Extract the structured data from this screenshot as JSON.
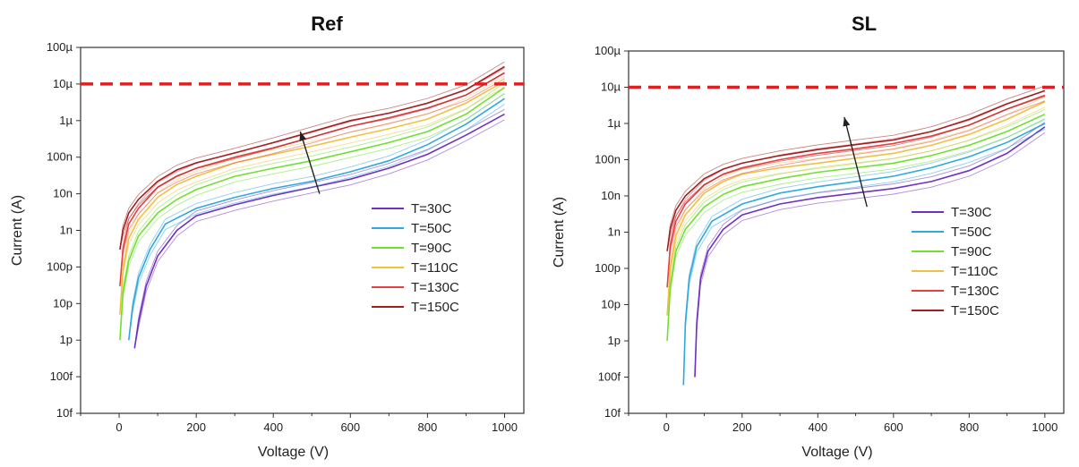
{
  "chart_data": [
    {
      "type": "line",
      "title": "Ref",
      "xlabel": "Voltage (V)",
      "ylabel": "Current (A)",
      "x_scale": "linear",
      "y_scale": "log",
      "xlim": [
        -100,
        1050
      ],
      "ylim": [
        1e-14,
        0.0001
      ],
      "x_ticks": [
        0,
        200,
        400,
        600,
        800,
        1000
      ],
      "y_ticks": [
        {
          "value": 0.0001,
          "label": "100µ"
        },
        {
          "value": 1e-05,
          "label": "10µ"
        },
        {
          "value": 1e-06,
          "label": "1µ"
        },
        {
          "value": 1e-07,
          "label": "100n"
        },
        {
          "value": 1e-08,
          "label": "10n"
        },
        {
          "value": 1e-09,
          "label": "1n"
        },
        {
          "value": 1e-10,
          "label": "100p"
        },
        {
          "value": 1e-11,
          "label": "10p"
        },
        {
          "value": 1e-12,
          "label": "1p"
        },
        {
          "value": 1e-13,
          "label": "100f"
        },
        {
          "value": 1e-14,
          "label": "10f"
        }
      ],
      "reference_line": {
        "y": 1e-05,
        "color": "#e02020",
        "style": "dashed"
      },
      "arrow": {
        "from": [
          520,
          1e-08
        ],
        "to": [
          470,
          5e-07
        ]
      },
      "legend_position": "bottom-right",
      "series": [
        {
          "name": "T=30C",
          "color": "#7030c0",
          "x": [
            40,
            50,
            70,
            100,
            150,
            200,
            300,
            400,
            500,
            600,
            700,
            800,
            900,
            1000
          ],
          "y": [
            6e-13,
            3e-12,
            3e-11,
            2e-10,
            1e-09,
            2.5e-09,
            5e-09,
            9e-09,
            1.5e-08,
            2.5e-08,
            5e-08,
            1.2e-07,
            4e-07,
            1.5e-06
          ]
        },
        {
          "name": "T=50C",
          "color": "#30a8e0",
          "x": [
            25,
            35,
            50,
            80,
            120,
            200,
            300,
            400,
            500,
            600,
            700,
            800,
            900,
            1000
          ],
          "y": [
            1e-12,
            8e-12,
            5e-11,
            3e-10,
            1.5e-09,
            4e-09,
            8e-09,
            1.4e-08,
            2.2e-08,
            4e-08,
            8e-08,
            2.2e-07,
            8e-07,
            4e-06
          ]
        },
        {
          "name": "T=90C",
          "color": "#70e030",
          "x": [
            2,
            10,
            25,
            50,
            100,
            150,
            200,
            300,
            400,
            500,
            600,
            700,
            800,
            900,
            1000
          ],
          "y": [
            1e-12,
            2e-11,
            1.5e-10,
            7e-10,
            3e-09,
            7e-09,
            1.3e-08,
            3e-08,
            5e-08,
            8e-08,
            1.4e-07,
            2.5e-07,
            5e-07,
            1.5e-06,
            8e-06
          ]
        },
        {
          "name": "T=110C",
          "color": "#f0c040",
          "x": [
            2,
            10,
            25,
            50,
            100,
            150,
            200,
            300,
            400,
            500,
            600,
            700,
            800,
            900,
            1000
          ],
          "y": [
            5e-12,
            8e-11,
            6e-10,
            2e-09,
            8e-09,
            1.8e-08,
            3e-08,
            7e-08,
            1.2e-07,
            2e-07,
            3.5e-07,
            6e-07,
            1.1e-06,
            3e-06,
            1.2e-05
          ]
        },
        {
          "name": "T=130C",
          "color": "#e84040",
          "x": [
            2,
            10,
            25,
            50,
            100,
            150,
            200,
            300,
            400,
            500,
            600,
            700,
            800,
            900,
            1000
          ],
          "y": [
            3e-11,
            3e-10,
            1.5e-09,
            4e-09,
            1.5e-08,
            3e-08,
            5e-08,
            1e-07,
            1.8e-07,
            3.5e-07,
            7e-07,
            1.2e-06,
            2.2e-06,
            5e-06,
            2e-05
          ]
        },
        {
          "name": "T=150C",
          "color": "#a02020",
          "x": [
            2,
            10,
            25,
            50,
            100,
            150,
            200,
            300,
            400,
            500,
            600,
            700,
            800,
            900,
            1000
          ],
          "y": [
            3e-10,
            1e-09,
            3e-09,
            7e-09,
            2.2e-08,
            4.5e-08,
            7e-08,
            1.3e-07,
            2.5e-07,
            5e-07,
            1e-06,
            1.6e-06,
            3e-06,
            7e-06,
            3e-05
          ]
        }
      ]
    },
    {
      "type": "line",
      "title": "SL",
      "xlabel": "Voltage (V)",
      "ylabel": "Current (A)",
      "x_scale": "linear",
      "y_scale": "log",
      "xlim": [
        -100,
        1050
      ],
      "ylim": [
        1e-14,
        0.0001
      ],
      "x_ticks": [
        0,
        200,
        400,
        600,
        800,
        1000
      ],
      "y_ticks": [
        {
          "value": 0.0001,
          "label": "100µ"
        },
        {
          "value": 1e-05,
          "label": "10µ"
        },
        {
          "value": 1e-06,
          "label": "1µ"
        },
        {
          "value": 1e-07,
          "label": "100n"
        },
        {
          "value": 1e-08,
          "label": "10n"
        },
        {
          "value": 1e-09,
          "label": "1n"
        },
        {
          "value": 1e-10,
          "label": "100p"
        },
        {
          "value": 1e-11,
          "label": "10p"
        },
        {
          "value": 1e-12,
          "label": "1p"
        },
        {
          "value": 1e-13,
          "label": "100f"
        },
        {
          "value": 1e-14,
          "label": "10f"
        }
      ],
      "reference_line": {
        "y": 1e-05,
        "color": "#e02020",
        "style": "dashed"
      },
      "arrow": {
        "from": [
          530,
          5e-09
        ],
        "to": [
          470,
          1.5e-06
        ]
      },
      "legend_position": "bottom-right",
      "series": [
        {
          "name": "T=30C",
          "color": "#7030c0",
          "x": [
            75,
            80,
            90,
            110,
            150,
            200,
            300,
            400,
            500,
            600,
            700,
            800,
            900,
            1000
          ],
          "y": [
            1e-13,
            3e-12,
            5e-11,
            3e-10,
            1.2e-09,
            3e-09,
            6e-09,
            9e-09,
            1.2e-08,
            1.6e-08,
            2.5e-08,
            5e-08,
            1.5e-07,
            8e-07
          ]
        },
        {
          "name": "T=50C",
          "color": "#30a8e0",
          "x": [
            45,
            50,
            60,
            80,
            120,
            200,
            300,
            400,
            500,
            600,
            700,
            800,
            900,
            1000
          ],
          "y": [
            6e-14,
            3e-12,
            5e-11,
            4e-10,
            2e-09,
            6e-09,
            1.2e-08,
            1.8e-08,
            2.5e-08,
            3.5e-08,
            6e-08,
            1.2e-07,
            3e-07,
            1e-06
          ]
        },
        {
          "name": "T=90C",
          "color": "#70e030",
          "x": [
            2,
            10,
            25,
            50,
            100,
            150,
            200,
            300,
            400,
            500,
            600,
            700,
            800,
            900,
            1000
          ],
          "y": [
            1e-12,
            3e-11,
            3e-10,
            1.2e-09,
            5e-09,
            1.1e-08,
            1.8e-08,
            3e-08,
            4.5e-08,
            6e-08,
            8e-08,
            1.3e-07,
            2.5e-07,
            6e-07,
            1.8e-06
          ]
        },
        {
          "name": "T=110C",
          "color": "#f0c040",
          "x": [
            2,
            10,
            25,
            50,
            100,
            150,
            200,
            300,
            400,
            500,
            600,
            700,
            800,
            900,
            1000
          ],
          "y": [
            5e-12,
            1e-10,
            8e-10,
            3e-09,
            1.2e-08,
            2.5e-08,
            4e-08,
            6e-08,
            8e-08,
            1.1e-07,
            1.5e-07,
            2.5e-07,
            5e-07,
            1.3e-06,
            4e-06
          ]
        },
        {
          "name": "T=130C",
          "color": "#e84040",
          "x": [
            2,
            10,
            25,
            50,
            100,
            150,
            200,
            300,
            400,
            500,
            600,
            700,
            800,
            900,
            1000
          ],
          "y": [
            3e-11,
            4e-10,
            2e-09,
            6e-09,
            2e-08,
            4e-08,
            6e-08,
            1e-07,
            1.5e-07,
            2e-07,
            2.8e-07,
            4.5e-07,
            9e-07,
            2.5e-06,
            6e-06
          ]
        },
        {
          "name": "T=150C",
          "color": "#a02020",
          "x": [
            2,
            10,
            25,
            50,
            100,
            150,
            200,
            300,
            400,
            500,
            600,
            700,
            800,
            900,
            1000
          ],
          "y": [
            3e-10,
            1.2e-09,
            4e-09,
            1e-08,
            3e-08,
            5.5e-08,
            8e-08,
            1.3e-07,
            1.9e-07,
            2.6e-07,
            3.5e-07,
            6e-07,
            1.3e-06,
            3.5e-06,
            8e-06
          ]
        }
      ]
    }
  ]
}
